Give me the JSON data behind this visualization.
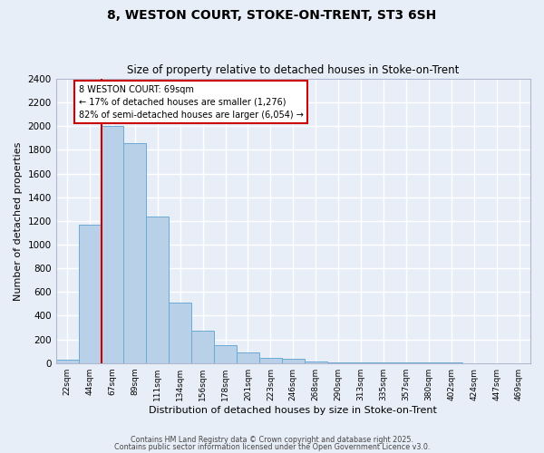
{
  "title1": "8, WESTON COURT, STOKE-ON-TRENT, ST3 6SH",
  "title2": "Size of property relative to detached houses in Stoke-on-Trent",
  "xlabel": "Distribution of detached houses by size in Stoke-on-Trent",
  "ylabel": "Number of detached properties",
  "categories": [
    "22sqm",
    "44sqm",
    "67sqm",
    "89sqm",
    "111sqm",
    "134sqm",
    "156sqm",
    "178sqm",
    "201sqm",
    "223sqm",
    "246sqm",
    "268sqm",
    "290sqm",
    "313sqm",
    "335sqm",
    "357sqm",
    "380sqm",
    "402sqm",
    "424sqm",
    "447sqm",
    "469sqm"
  ],
  "bar_heights": [
    25,
    1170,
    2000,
    1860,
    1240,
    510,
    275,
    150,
    90,
    45,
    35,
    15,
    5,
    5,
    3,
    3,
    2,
    2,
    1,
    1,
    1
  ],
  "annotation_text": "8 WESTON COURT: 69sqm\n← 17% of detached houses are smaller (1,276)\n82% of semi-detached houses are larger (6,054) →",
  "bar_color": "#b8d0e8",
  "bar_edge_color": "#6aaad4",
  "red_line_color": "#cc0000",
  "annotation_box_color": "#ffffff",
  "annotation_box_edge": "#cc0000",
  "bg_color": "#e8eef8",
  "grid_color": "#ffffff",
  "footer1": "Contains HM Land Registry data © Crown copyright and database right 2025.",
  "footer2": "Contains public sector information licensed under the Open Government Licence v3.0.",
  "ylim": [
    0,
    2400
  ],
  "yticks": [
    0,
    200,
    400,
    600,
    800,
    1000,
    1200,
    1400,
    1600,
    1800,
    2000,
    2200,
    2400
  ]
}
